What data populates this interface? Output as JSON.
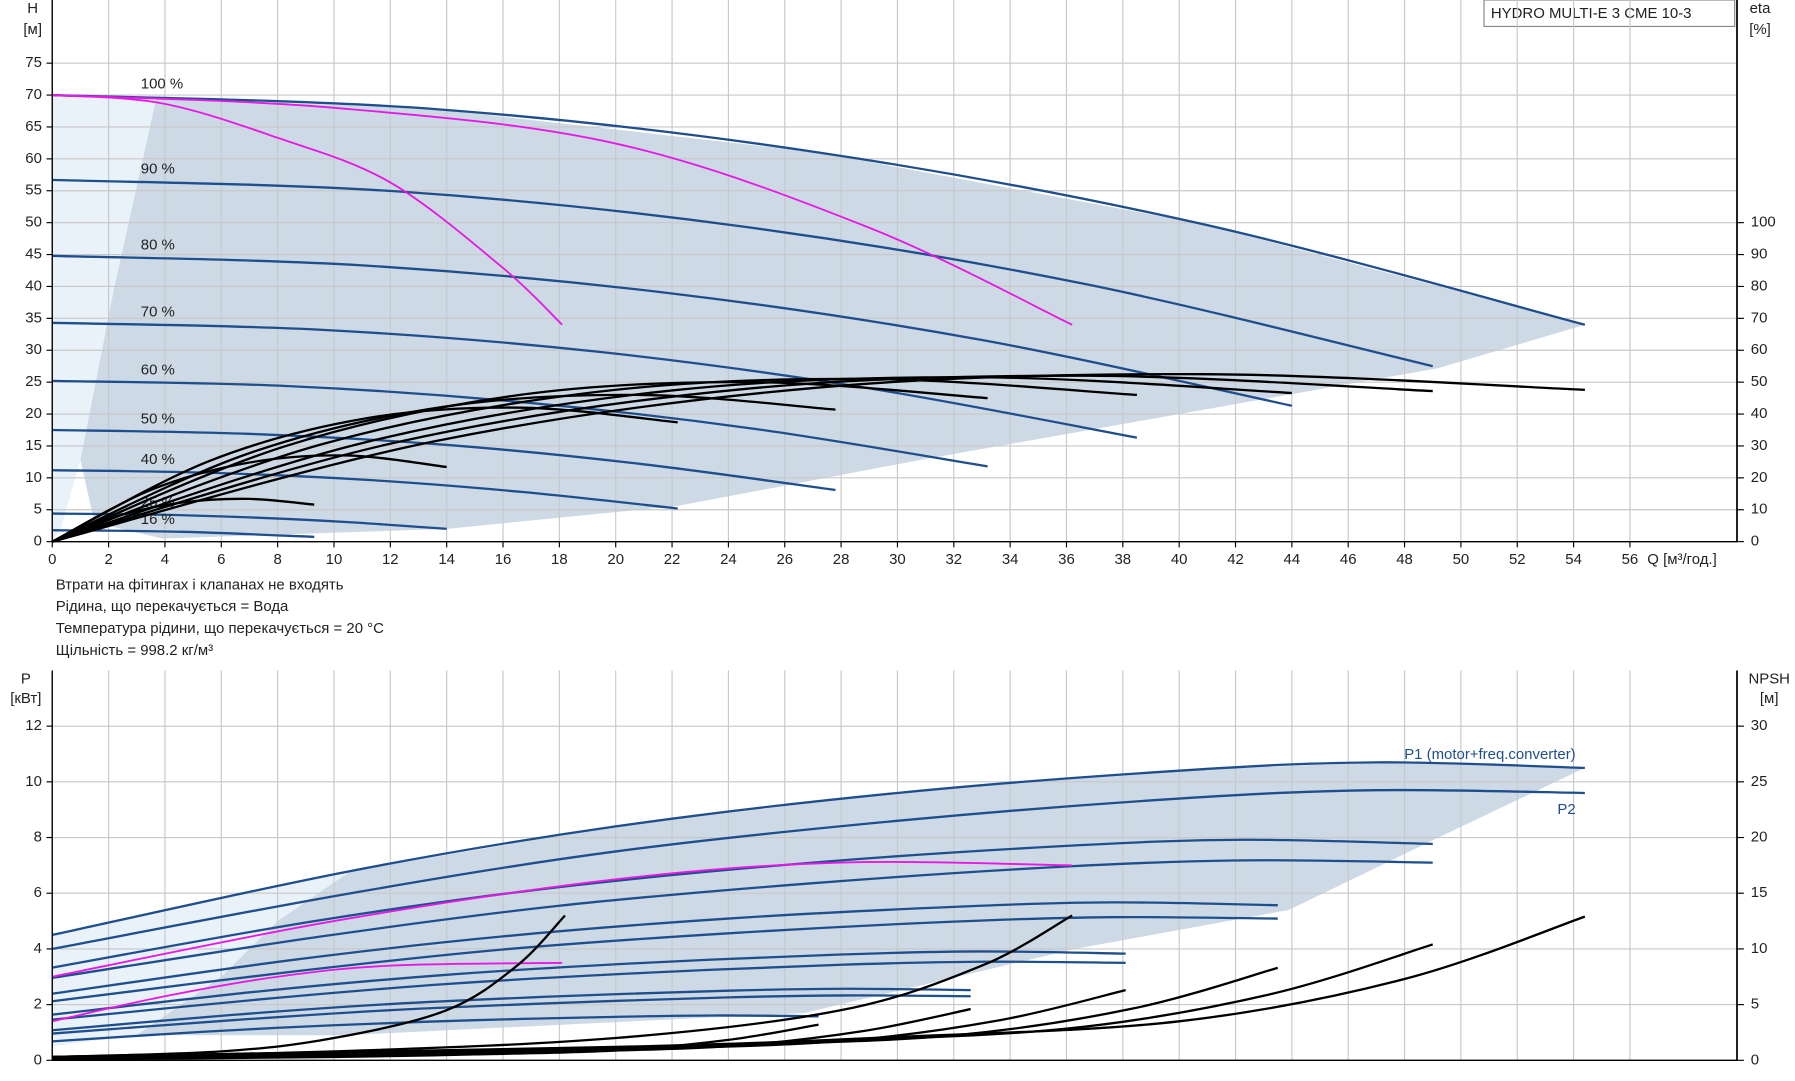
{
  "chart_data": [
    {
      "type": "line",
      "title": "HYDRO MULTI-E 3 CME 10-3",
      "notes": [
        "Втрати на фітингах і клапанах не входять",
        "Рідина, що перекачується = Вода",
        "Температура рідини, що перекачується = 20 °C",
        "Щільність = 998.2 кг/м³"
      ],
      "x_label": "Q [м³/год.]",
      "y_label": "H",
      "y_unit": "[м]",
      "y2_label": "eta",
      "y2_unit": "[%]",
      "xlim": [
        0,
        59.8
      ],
      "ylim": [
        0,
        84.9
      ],
      "y2lim": [
        0,
        169.8
      ],
      "grid": true,
      "xticks": [
        0,
        2,
        4,
        6,
        8,
        10,
        12,
        14,
        16,
        18,
        20,
        22,
        24,
        26,
        28,
        30,
        32,
        34,
        36,
        38,
        40,
        42,
        44,
        46,
        48,
        50,
        52,
        54,
        56
      ],
      "yticks": [
        0,
        5,
        10,
        15,
        20,
        25,
        30,
        35,
        40,
        45,
        50,
        55,
        60,
        65,
        70,
        75
      ],
      "y2ticks": [
        0,
        10,
        20,
        30,
        40,
        50,
        60,
        70,
        80,
        90,
        100
      ],
      "areas": [
        {
          "color": "#e9f1f9",
          "x": [
            0,
            3.7,
            2.2,
            1,
            0.3,
            0
          ],
          "values": [
            70,
            69.6,
            39.8,
            12.8,
            2,
            0
          ]
        },
        {
          "color": "#cdd9e5",
          "x": [
            3.7,
            13.6,
            27.2,
            40.8,
            54.4,
            49.2,
            30.8,
            22.2,
            14,
            3.9,
            1.5,
            1,
            2.2
          ],
          "values": [
            69.6,
            67.8,
            61,
            49.8,
            34,
            27.2,
            12.8,
            5.6,
            2,
            0.5,
            3,
            12.8,
            39.8
          ]
        }
      ],
      "series": [
        {
          "name": "100 %",
          "color": "#1f4e8c",
          "x": [
            0,
            13.6,
            27.2,
            40.8,
            54.4
          ],
          "values": [
            70,
            67.8,
            61,
            49.8,
            34
          ]
        },
        {
          "name": "90 %",
          "color": "#1f4e8c",
          "x": [
            0,
            12.25,
            24.5,
            36.75,
            49
          ],
          "values": [
            56.7,
            54.9,
            49.4,
            40.3,
            27.5
          ]
        },
        {
          "name": "80 %",
          "color": "#1f4e8c",
          "x": [
            0,
            11,
            22,
            33,
            44
          ],
          "values": [
            44.8,
            43.3,
            38.9,
            31.6,
            21.3
          ]
        },
        {
          "name": "70 %",
          "color": "#1f4e8c",
          "x": [
            0,
            9.6,
            19.3,
            28.9,
            38.5
          ],
          "values": [
            34.3,
            33.2,
            29.8,
            24.1,
            16.3
          ]
        },
        {
          "name": "60 %",
          "color": "#1f4e8c",
          "x": [
            0,
            8.3,
            16.6,
            24.9,
            33.2
          ],
          "values": [
            25.2,
            24.4,
            21.9,
            17.7,
            11.8
          ]
        },
        {
          "name": "50 %",
          "color": "#1f4e8c",
          "x": [
            0,
            6.95,
            13.9,
            20.85,
            27.8
          ],
          "values": [
            17.5,
            16.9,
            15.2,
            12.2,
            8.1
          ]
        },
        {
          "name": "40 %",
          "color": "#1f4e8c",
          "x": [
            0,
            5.55,
            11.1,
            16.65,
            22.2
          ],
          "values": [
            11.2,
            10.8,
            9.7,
            7.8,
            5.2
          ]
        },
        {
          "name": "25 %",
          "color": "#1f4e8c",
          "x": [
            0,
            3.5,
            7,
            10.5,
            14
          ],
          "values": [
            4.4,
            4.25,
            3.8,
            3.06,
            2
          ]
        },
        {
          "name": "16 %",
          "color": "#1f4e8c",
          "x": [
            0,
            4.65,
            9.3
          ],
          "values": [
            1.8,
            1.54,
            0.75
          ]
        },
        {
          "color": "#e619e6",
          "x": [
            0,
            3.9,
            8,
            12,
            16,
            18.1
          ],
          "values": [
            70,
            68.7,
            63.3,
            56.3,
            42.9,
            34
          ]
        },
        {
          "color": "#e619e6",
          "x": [
            0,
            10,
            20,
            29,
            36.2
          ],
          "values": [
            70,
            68,
            62.4,
            49.2,
            34
          ]
        },
        {
          "color": "#000000",
          "axis": "y2",
          "x": [
            0,
            13.6,
            27.2,
            40.8,
            54.4
          ],
          "values": [
            0,
            31.5,
            48.3,
            52.5,
            47.6
          ]
        },
        {
          "color": "#000000",
          "axis": "y2",
          "x": [
            0,
            12.25,
            24.5,
            36.75,
            49
          ],
          "values": [
            0,
            31.2,
            47.8,
            52,
            47.2
          ]
        },
        {
          "color": "#000000",
          "axis": "y2",
          "x": [
            0,
            11,
            22,
            33,
            44
          ],
          "values": [
            0,
            30.9,
            47.4,
            51.5,
            46.6
          ]
        },
        {
          "color": "#000000",
          "axis": "y2",
          "x": [
            0,
            9.6,
            19.3,
            28.9,
            38.5
          ],
          "values": [
            0,
            30.6,
            46.9,
            51,
            46
          ]
        },
        {
          "color": "#000000",
          "axis": "y2",
          "x": [
            0,
            8.3,
            16.6,
            24.9,
            33.2
          ],
          "values": [
            0,
            30,
            46,
            50,
            45
          ]
        },
        {
          "color": "#000000",
          "axis": "y2",
          "x": [
            0,
            6.95,
            13.9,
            20.85,
            27.8
          ],
          "values": [
            0,
            27.6,
            42.3,
            46,
            41.4
          ]
        },
        {
          "color": "#000000",
          "axis": "y2",
          "x": [
            0,
            5.55,
            11.1,
            16.65,
            22.2
          ],
          "values": [
            0,
            25.2,
            38.6,
            42,
            37.4
          ]
        },
        {
          "color": "#000000",
          "axis": "y2",
          "x": [
            0,
            3.5,
            7,
            10.5,
            14
          ],
          "values": [
            0,
            16.2,
            24.8,
            27,
            23.4
          ]
        },
        {
          "color": "#000000",
          "axis": "y2",
          "x": [
            0,
            2.3,
            4.65,
            7,
            9.3
          ],
          "values": [
            0,
            8,
            12.3,
            13.4,
            11.6
          ]
        }
      ]
    },
    {
      "type": "line",
      "y_label": "P",
      "y_unit": "[кВт]",
      "y2_label": "NPSH",
      "y2_unit": "[м]",
      "xlim": [
        0,
        59.8
      ],
      "ylim": [
        0,
        14
      ],
      "y2lim": [
        0,
        35
      ],
      "grid": true,
      "yticks": [
        0,
        2,
        4,
        6,
        8,
        10,
        12
      ],
      "y2ticks": [
        0,
        5,
        10,
        15,
        20,
        25,
        30
      ],
      "areas": [
        {
          "color": "#e9f1f9",
          "x": [
            0,
            10.6,
            8,
            6,
            3,
            0
          ],
          "values": [
            4.5,
            6.8,
            5,
            3,
            0.9,
            0.5
          ]
        },
        {
          "color": "#cdd9e5",
          "x": [
            10.6,
            20,
            30,
            40,
            47,
            54.4,
            49.2,
            43.9,
            36.3,
            26.7,
            10.4,
            3,
            6,
            8
          ],
          "values": [
            6.8,
            8.4,
            9.6,
            10.4,
            10.7,
            10.5,
            8,
            5.4,
            4,
            1.7,
            0.9,
            0.9,
            3,
            5
          ]
        }
      ],
      "series": [
        {
          "name": "P1 (motor+freq.converter)",
          "color": "#1f4e8c",
          "x": [
            0,
            10.6,
            20,
            30,
            40,
            47,
            54.4
          ],
          "values": [
            4.5,
            6.8,
            8.4,
            9.6,
            10.4,
            10.7,
            10.5
          ]
        },
        {
          "name": "P2",
          "color": "#1f4e8c",
          "x": [
            0,
            10.6,
            20,
            30,
            40,
            47,
            54.4
          ],
          "values": [
            4,
            6,
            7.5,
            8.6,
            9.4,
            9.7,
            9.6
          ]
        },
        {
          "color": "#1f4e8c",
          "x": [
            0,
            9.5,
            18,
            27,
            36,
            42.3,
            49
          ],
          "values": [
            3.33,
            5.03,
            6.22,
            7.1,
            7.7,
            7.92,
            7.77
          ]
        },
        {
          "color": "#1f4e8c",
          "x": [
            0,
            8.5,
            16,
            24,
            32,
            37.6,
            43.5
          ],
          "values": [
            2.39,
            3.6,
            4.45,
            5.09,
            5.51,
            5.67,
            5.57
          ]
        },
        {
          "color": "#1f4e8c",
          "x": [
            0,
            7.4,
            14,
            21,
            28,
            32.9,
            38.1
          ],
          "values": [
            1.64,
            2.48,
            3.07,
            3.5,
            3.8,
            3.91,
            3.83
          ]
        },
        {
          "color": "#1f4e8c",
          "x": [
            0,
            6.4,
            12,
            18,
            24,
            28.2,
            32.6
          ],
          "values": [
            1.08,
            1.63,
            2.02,
            2.3,
            2.5,
            2.57,
            2.52
          ]
        },
        {
          "color": "#1f4e8c",
          "x": [
            0,
            5.3,
            10,
            15,
            20,
            23.5,
            27.2
          ],
          "values": [
            0.68,
            1.02,
            1.26,
            1.44,
            1.56,
            1.61,
            1.58
          ]
        },
        {
          "color": "#1f4e8c",
          "x": [
            0,
            9.5,
            18,
            27,
            36,
            42.3,
            49
          ],
          "values": [
            2.96,
            4.44,
            5.55,
            6.36,
            6.96,
            7.18,
            7.1
          ]
        },
        {
          "color": "#1f4e8c",
          "x": [
            0,
            8.5,
            16,
            24,
            32,
            37.6,
            43.5
          ],
          "values": [
            2.12,
            3.18,
            3.98,
            4.56,
            4.98,
            5.14,
            5.09
          ]
        },
        {
          "color": "#1f4e8c",
          "x": [
            0,
            7.4,
            14,
            21,
            28,
            32.9,
            38.1
          ],
          "values": [
            1.46,
            2.19,
            2.74,
            3.14,
            3.43,
            3.54,
            3.5
          ]
        },
        {
          "color": "#1f4e8c",
          "x": [
            0,
            6.4,
            12,
            18,
            24,
            28.2,
            32.6
          ],
          "values": [
            0.96,
            1.44,
            1.8,
            2.06,
            2.26,
            2.33,
            2.3
          ]
        },
        {
          "color": "#e619e6",
          "x": [
            0,
            4,
            8,
            12,
            18.1
          ],
          "values": [
            1.4,
            2.3,
            3,
            3.4,
            3.5
          ]
        },
        {
          "color": "#e619e6",
          "x": [
            0,
            10,
            20,
            28,
            36.2
          ],
          "values": [
            3,
            5,
            6.5,
            7.1,
            7
          ]
        },
        {
          "color": "#000000",
          "axis": "y2",
          "x": [
            0,
            20,
            30,
            40,
            48,
            54.4
          ],
          "values": [
            0.3,
            1.2,
            2.1,
            3.5,
            7.3,
            12.9
          ]
        },
        {
          "color": "#000000",
          "axis": "y2",
          "x": [
            0,
            18,
            27,
            36,
            43.2,
            49
          ],
          "values": [
            0.24,
            0.97,
            1.7,
            2.84,
            5.91,
            10.4
          ]
        },
        {
          "color": "#000000",
          "axis": "y2",
          "x": [
            0,
            16,
            24,
            32,
            38.4,
            43.5
          ],
          "values": [
            0.19,
            0.77,
            1.34,
            2.24,
            4.67,
            8.3
          ]
        },
        {
          "color": "#000000",
          "axis": "y2",
          "x": [
            0,
            14,
            21,
            28,
            33.6,
            38.1
          ],
          "values": [
            0.15,
            0.59,
            1.03,
            1.72,
            3.58,
            6.3
          ]
        },
        {
          "color": "#000000",
          "axis": "y2",
          "x": [
            0,
            12,
            18,
            24,
            28.8,
            32.6
          ],
          "values": [
            0.11,
            0.43,
            0.76,
            1.26,
            2.63,
            4.6
          ]
        },
        {
          "color": "#000000",
          "axis": "y2",
          "x": [
            0,
            10,
            15,
            20,
            24,
            27.2
          ],
          "values": [
            0.08,
            0.3,
            0.53,
            0.88,
            1.83,
            3.2
          ]
        },
        {
          "color": "#000000",
          "axis": "y2",
          "x": [
            0,
            10,
            20,
            28,
            33,
            36.2
          ],
          "values": [
            0.3,
            0.8,
            2,
            4.5,
            8.5,
            13
          ]
        },
        {
          "color": "#000000",
          "axis": "y2",
          "x": [
            0,
            6,
            10,
            14,
            16.5,
            18.2
          ],
          "values": [
            0.3,
            0.8,
            2,
            4.5,
            8.5,
            13
          ]
        }
      ]
    }
  ]
}
